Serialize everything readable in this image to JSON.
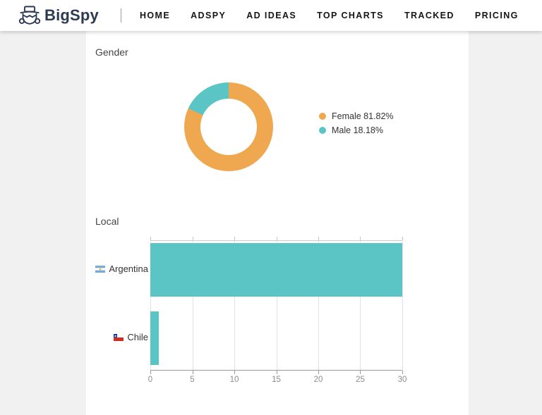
{
  "nav": {
    "brand": "BigSpy",
    "items": [
      {
        "label": "HOME"
      },
      {
        "label": "ADSPY"
      },
      {
        "label": "AD IDEAS"
      },
      {
        "label": "TOP CHARTS"
      },
      {
        "label": "TRACKED"
      },
      {
        "label": "PRICING"
      }
    ]
  },
  "gender_section": {
    "title": "Gender",
    "legend": [
      {
        "label": "Female 81.82%",
        "color": "#f0a850"
      },
      {
        "label": "Male 18.18%",
        "color": "#5bc4c4"
      }
    ]
  },
  "local_section": {
    "title": "Local",
    "x_max": 30,
    "x_ticks": [
      "0",
      "5",
      "10",
      "15",
      "20",
      "25",
      "30"
    ],
    "bars": [
      {
        "label": "Argentina",
        "flag": "argentina-flag",
        "value": 30
      },
      {
        "label": "Chile",
        "flag": "chile-flag",
        "value": 1
      }
    ]
  },
  "colors": {
    "female": "#f0a850",
    "male": "#5bc4c4",
    "bar": "#5bc4c4",
    "brand_navy": "#2c3a52"
  },
  "chart_data": [
    {
      "type": "pie",
      "title": "Gender",
      "labels": [
        "Female",
        "Male"
      ],
      "values": [
        81.82,
        18.18
      ],
      "unit": "%",
      "colors": [
        "#f0a850",
        "#5bc4c4"
      ],
      "donut": true,
      "legend_position": "right"
    },
    {
      "type": "bar",
      "title": "Local",
      "orientation": "horizontal",
      "categories": [
        "Argentina",
        "Chile"
      ],
      "values": [
        30,
        1
      ],
      "xlim": [
        0,
        30
      ],
      "x_ticks": [
        0,
        5,
        10,
        15,
        20,
        25,
        30
      ],
      "grid": true,
      "bar_color": "#5bc4c4"
    }
  ]
}
